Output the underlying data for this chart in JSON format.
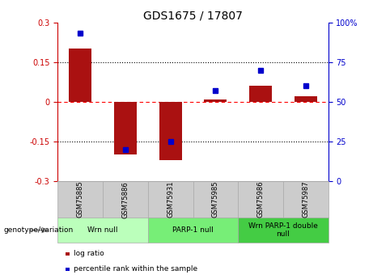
{
  "title": "GDS1675 / 17807",
  "samples": [
    "GSM75885",
    "GSM75886",
    "GSM75931",
    "GSM75985",
    "GSM75986",
    "GSM75987"
  ],
  "log_ratio": [
    0.2,
    -0.2,
    -0.22,
    0.01,
    0.06,
    0.02
  ],
  "percentile_rank": [
    93,
    20,
    25,
    57,
    70,
    60
  ],
  "ylim_left": [
    -0.3,
    0.3
  ],
  "ylim_right": [
    0,
    100
  ],
  "yticks_left": [
    -0.3,
    -0.15,
    0.0,
    0.15,
    0.3
  ],
  "yticks_right": [
    0,
    25,
    50,
    75,
    100
  ],
  "hlines": [
    -0.15,
    0.0,
    0.15
  ],
  "hline_styles": [
    "dotted",
    "dashed",
    "dotted"
  ],
  "hline_colors": [
    "black",
    "red",
    "black"
  ],
  "bar_color": "#aa1111",
  "scatter_color": "#0000cc",
  "bar_width": 0.5,
  "groups": [
    {
      "label": "Wrn null",
      "n_samples": 2,
      "color": "#bbffbb"
    },
    {
      "label": "PARP-1 null",
      "n_samples": 2,
      "color": "#77ee77"
    },
    {
      "label": "Wrn PARP-1 double\nnull",
      "n_samples": 2,
      "color": "#44cc44"
    }
  ],
  "legend_items": [
    {
      "label": "log ratio",
      "color": "#aa1111"
    },
    {
      "label": "percentile rank within the sample",
      "color": "#0000cc"
    }
  ],
  "genotype_label": "genotype/variation",
  "left_axis_color": "#cc0000",
  "right_axis_color": "#0000cc",
  "sample_box_color": "#cccccc",
  "figsize": [
    4.61,
    3.45
  ],
  "dpi": 100
}
